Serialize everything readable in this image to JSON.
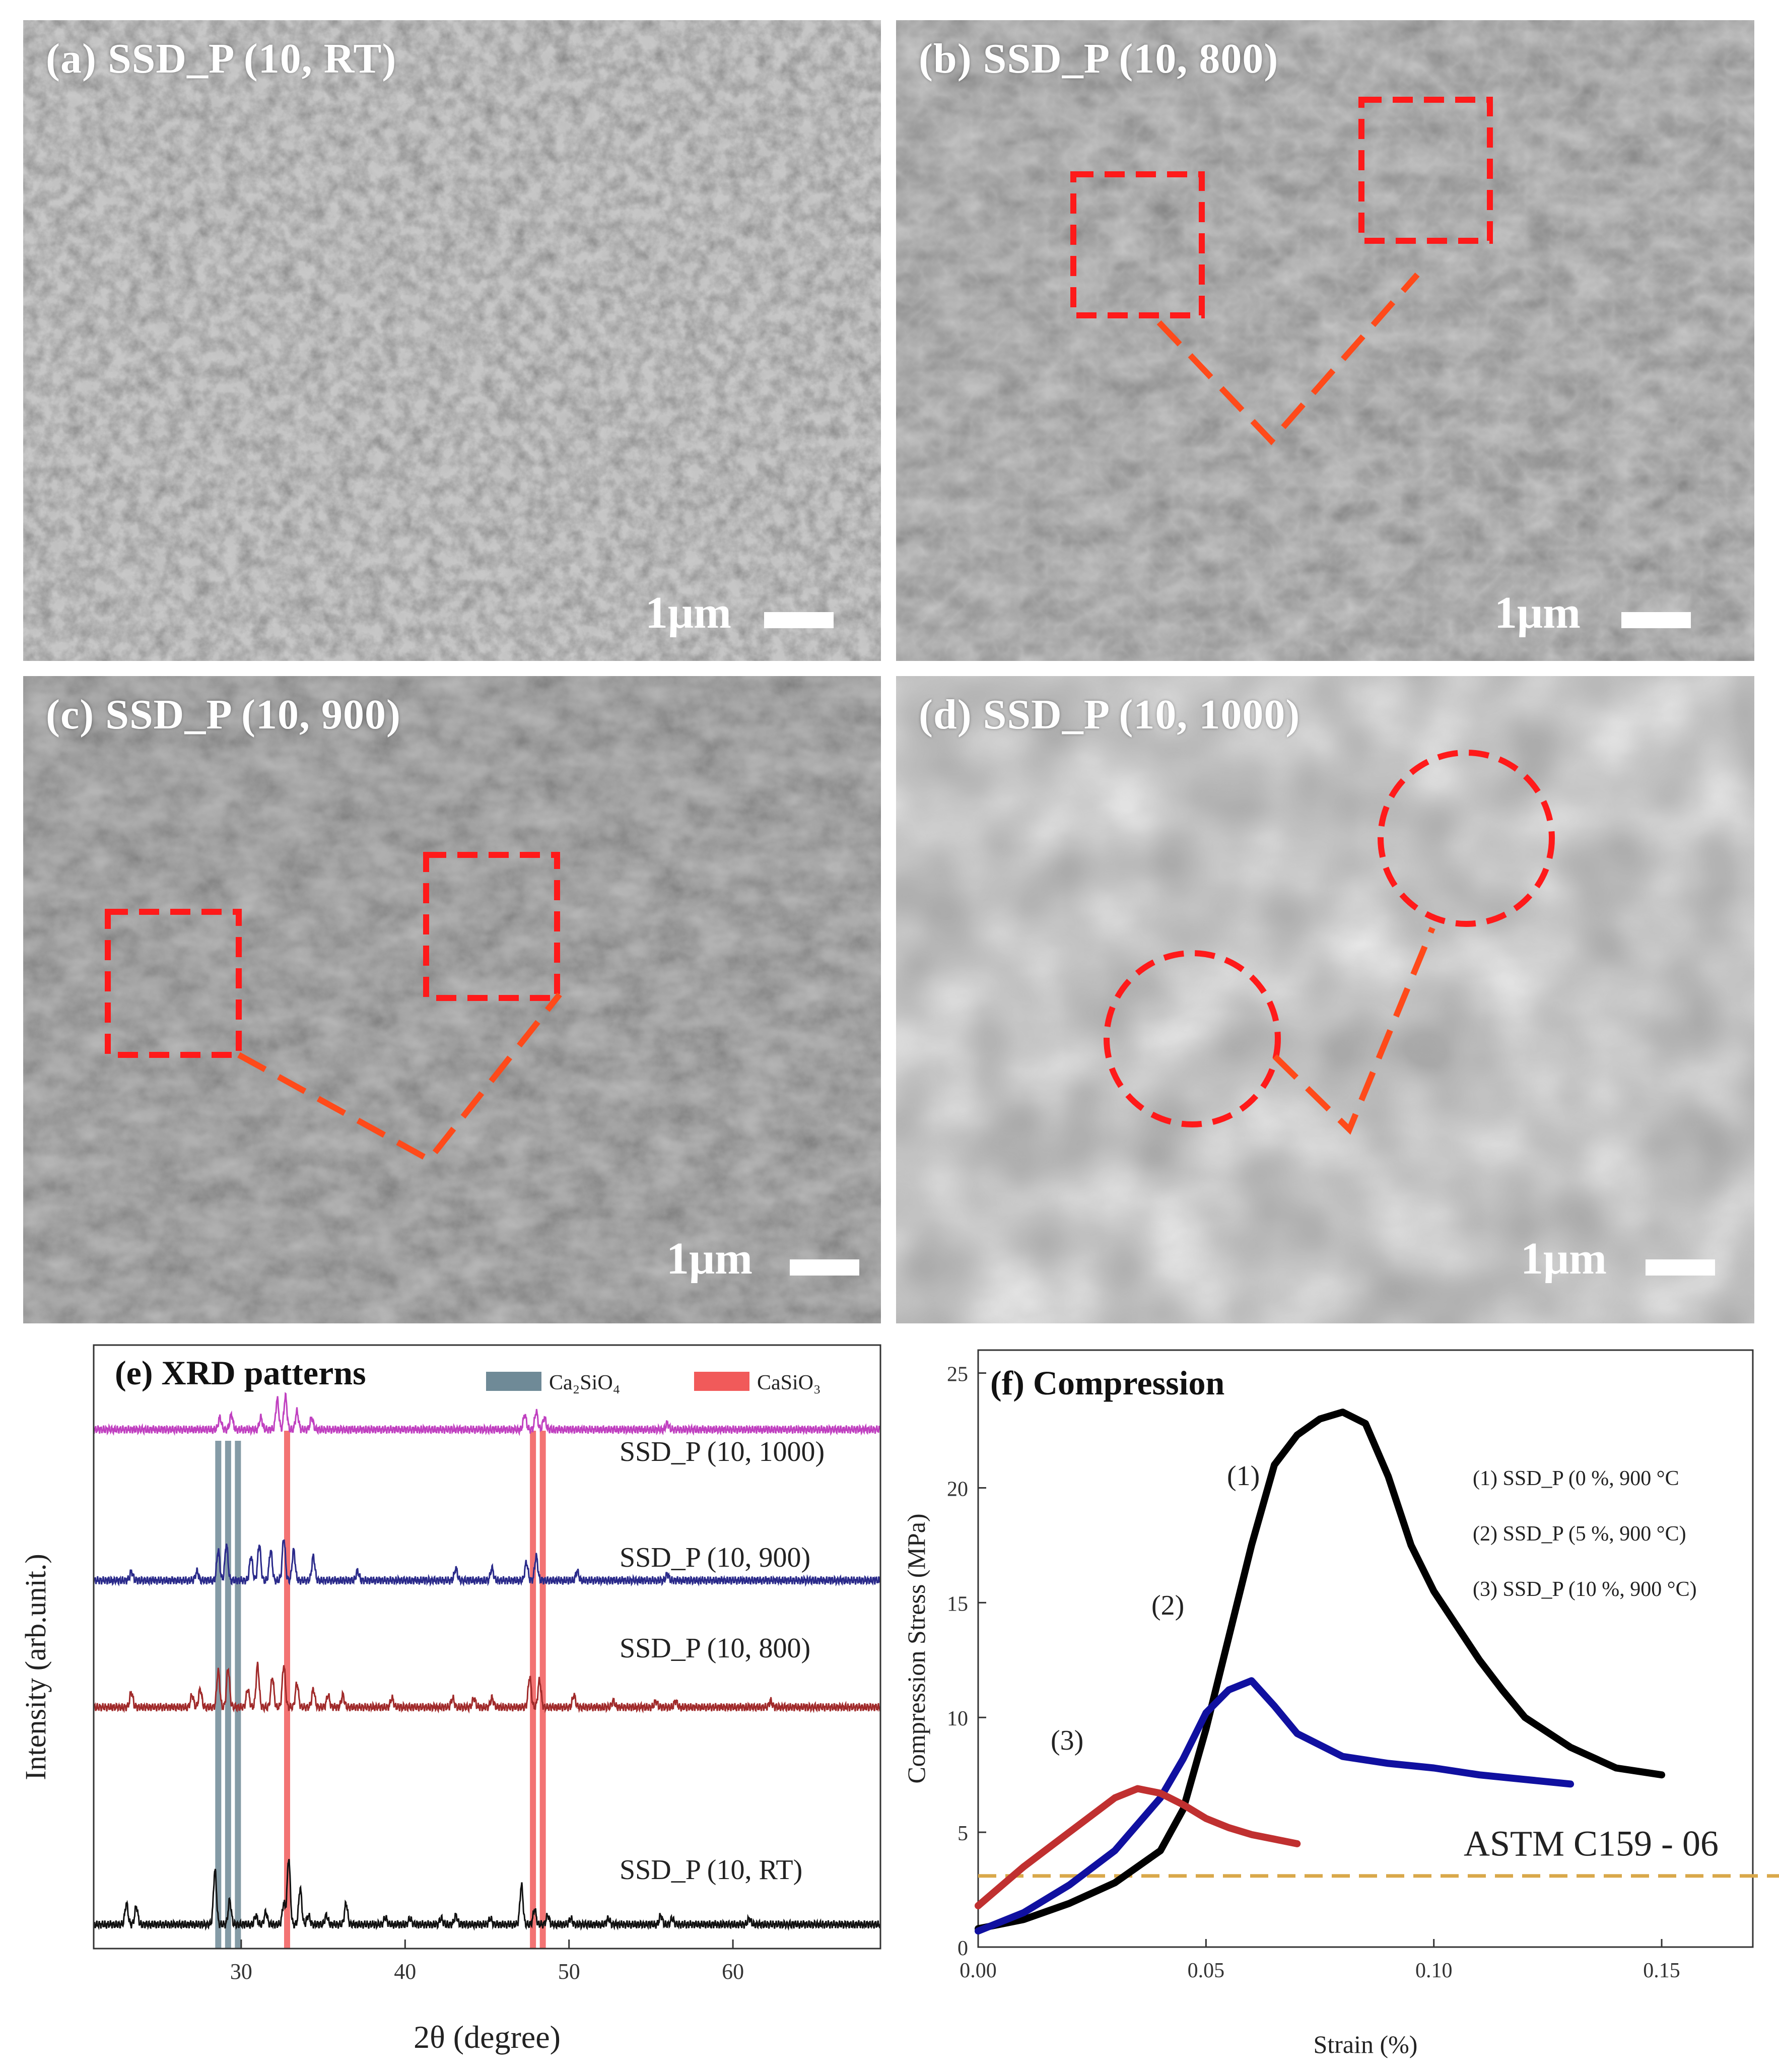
{
  "sem_panels": [
    {
      "label": "(a) SSD_P (10, RT)",
      "scale": "1μm"
    },
    {
      "label": "(b) SSD_P (10, 800)",
      "scale": "1μm"
    },
    {
      "label": "(c) SSD_P (10, 900)",
      "scale": "1μm"
    },
    {
      "label": "(d) SSD_P (10, 1000)",
      "scale": "1μm"
    }
  ],
  "colors": {
    "sem_background": "#7d7d7d",
    "highlight_box": "#ff1a1a",
    "connector": "#ff4a1a",
    "ca2sio4_band": "#6f8a97",
    "casio3_band": "#f15a5a",
    "astm_line": "#d9a84a"
  },
  "chart_data": [
    {
      "type": "line",
      "title": "(e) XRD patterns",
      "xlabel": "2θ (degree)",
      "ylabel": "Intensity (arb.unit.)",
      "xlim": [
        21,
        69
      ],
      "xticks": [
        30,
        40,
        50,
        60
      ],
      "legend": [
        {
          "name": "Ca₂SiO₄",
          "color": "#6f8a97"
        },
        {
          "name": "CaSiO₃",
          "color": "#f15a5a"
        }
      ],
      "bands": {
        "Ca2SiO4": [
          28.6,
          29.2,
          29.8
        ],
        "CaSiO3": [
          32.8,
          47.8,
          48.4
        ]
      },
      "series": [
        {
          "name": "SSD_P (10, 1000)",
          "color": "#c040c0",
          "baseline": 0.86,
          "peaks": [
            [
              28.7,
              0.02
            ],
            [
              29.4,
              0.025
            ],
            [
              31.2,
              0.02
            ],
            [
              32.2,
              0.05
            ],
            [
              32.7,
              0.055
            ],
            [
              33.4,
              0.03
            ],
            [
              34.3,
              0.02
            ],
            [
              47.3,
              0.025
            ],
            [
              48.0,
              0.03
            ],
            [
              48.5,
              0.02
            ],
            [
              56.0,
              0.01
            ]
          ]
        },
        {
          "name": "SSD_P (10, 900)",
          "color": "#2a2a8a",
          "baseline": 0.61,
          "peaks": [
            [
              23.3,
              0.015
            ],
            [
              27.3,
              0.015
            ],
            [
              28.6,
              0.05
            ],
            [
              29.1,
              0.06
            ],
            [
              30.6,
              0.04
            ],
            [
              31.1,
              0.06
            ],
            [
              31.8,
              0.05
            ],
            [
              32.6,
              0.07
            ],
            [
              33.2,
              0.05
            ],
            [
              34.4,
              0.04
            ],
            [
              37.1,
              0.015
            ],
            [
              43.1,
              0.02
            ],
            [
              45.3,
              0.02
            ],
            [
              47.4,
              0.03
            ],
            [
              48.0,
              0.04
            ],
            [
              50.5,
              0.015
            ],
            [
              56.0,
              0.01
            ]
          ]
        },
        {
          "name": "SSD_P (10, 800)",
          "color": "#a02a2a",
          "baseline": 0.4,
          "peaks": [
            [
              23.3,
              0.025
            ],
            [
              27.0,
              0.02
            ],
            [
              27.5,
              0.03
            ],
            [
              28.6,
              0.06
            ],
            [
              29.2,
              0.065
            ],
            [
              30.4,
              0.03
            ],
            [
              31.0,
              0.07
            ],
            [
              31.9,
              0.05
            ],
            [
              32.6,
              0.07
            ],
            [
              33.4,
              0.04
            ],
            [
              34.4,
              0.03
            ],
            [
              35.3,
              0.02
            ],
            [
              36.2,
              0.02
            ],
            [
              39.2,
              0.015
            ],
            [
              42.9,
              0.015
            ],
            [
              44.2,
              0.015
            ],
            [
              45.3,
              0.015
            ],
            [
              47.6,
              0.05
            ],
            [
              48.2,
              0.045
            ],
            [
              50.3,
              0.02
            ],
            [
              52.7,
              0.01
            ],
            [
              55.3,
              0.01
            ],
            [
              56.5,
              0.01
            ],
            [
              62.3,
              0.01
            ]
          ]
        },
        {
          "name": "SSD_P (10, RT)",
          "color": "#111111",
          "baseline": 0.04,
          "peaks": [
            [
              23.0,
              0.035
            ],
            [
              23.6,
              0.03
            ],
            [
              28.4,
              0.09
            ],
            [
              29.3,
              0.04
            ],
            [
              30.9,
              0.015
            ],
            [
              31.5,
              0.02
            ],
            [
              32.6,
              0.035
            ],
            [
              32.9,
              0.11
            ],
            [
              33.6,
              0.06
            ],
            [
              34.1,
              0.015
            ],
            [
              35.2,
              0.015
            ],
            [
              36.4,
              0.035
            ],
            [
              38.8,
              0.012
            ],
            [
              40.3,
              0.01
            ],
            [
              42.2,
              0.01
            ],
            [
              43.1,
              0.015
            ],
            [
              45.2,
              0.01
            ],
            [
              47.1,
              0.065
            ],
            [
              47.9,
              0.025
            ],
            [
              48.7,
              0.015
            ],
            [
              50.1,
              0.01
            ],
            [
              52.4,
              0.01
            ],
            [
              55.6,
              0.015
            ],
            [
              56.3,
              0.01
            ],
            [
              61.0,
              0.01
            ]
          ]
        }
      ]
    },
    {
      "type": "line",
      "title": "(f) Compression",
      "xlabel": "Strain (%)",
      "ylabel": "Compression Stress (MPa)",
      "xlim": [
        0,
        0.17
      ],
      "ylim": [
        0,
        26
      ],
      "xticks": [
        "0.00",
        "0.05",
        "0.10",
        "0.15"
      ],
      "yticks": [
        0,
        5,
        10,
        15,
        20,
        25
      ],
      "legend": [
        "(1) SSD_P (0 %, 900 °C",
        "(2) SSD_P (5 %, 900 °C)",
        "(3) SSD_P (10 %, 900 °C)"
      ],
      "reference_line": {
        "label": "ASTM C159 - 06",
        "y": 3.1
      },
      "series": [
        {
          "name": "(1)",
          "color": "#000000",
          "x": [
            0.0,
            0.01,
            0.02,
            0.03,
            0.04,
            0.045,
            0.05,
            0.055,
            0.06,
            0.065,
            0.07,
            0.075,
            0.08,
            0.085,
            0.09,
            0.095,
            0.1,
            0.105,
            0.11,
            0.115,
            0.12,
            0.13,
            0.14,
            0.15
          ],
          "y": [
            0.8,
            1.2,
            1.9,
            2.8,
            4.2,
            6.0,
            9.5,
            13.5,
            17.5,
            21.0,
            22.3,
            23.0,
            23.3,
            22.8,
            20.5,
            17.5,
            15.5,
            14.0,
            12.5,
            11.2,
            10.0,
            8.7,
            7.8,
            7.5
          ]
        },
        {
          "name": "(2)",
          "color": "#1010a0",
          "x": [
            0.0,
            0.01,
            0.02,
            0.03,
            0.04,
            0.045,
            0.05,
            0.055,
            0.06,
            0.065,
            0.07,
            0.08,
            0.09,
            0.1,
            0.11,
            0.12,
            0.13
          ],
          "y": [
            0.7,
            1.5,
            2.7,
            4.2,
            6.5,
            8.2,
            10.2,
            11.2,
            11.6,
            10.5,
            9.3,
            8.3,
            8.0,
            7.8,
            7.5,
            7.3,
            7.1
          ]
        },
        {
          "name": "(3)",
          "color": "#c03030",
          "x": [
            0.0,
            0.01,
            0.02,
            0.03,
            0.035,
            0.04,
            0.045,
            0.05,
            0.055,
            0.06,
            0.065,
            0.07
          ],
          "y": [
            1.8,
            3.5,
            5.0,
            6.5,
            6.9,
            6.7,
            6.2,
            5.6,
            5.2,
            4.9,
            4.7,
            4.5
          ]
        }
      ]
    }
  ]
}
